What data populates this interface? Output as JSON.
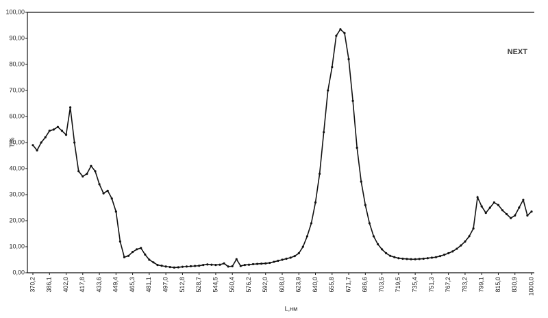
{
  "chart_data": {
    "type": "line",
    "x_label": "L,нм",
    "y_label": "T,%",
    "annotation": "NEXT",
    "color": "#111111",
    "grid": false,
    "categories": [
      "370,2",
      null,
      null,
      null,
      "386,1",
      null,
      null,
      null,
      "402,0",
      null,
      null,
      null,
      "417,8",
      null,
      null,
      null,
      "433,6",
      null,
      null,
      null,
      "449,4",
      null,
      null,
      null,
      "465,3",
      null,
      null,
      null,
      "481,1",
      null,
      null,
      null,
      "497,0",
      null,
      null,
      null,
      "512,8",
      null,
      null,
      null,
      "528,7",
      null,
      null,
      null,
      "544,5",
      null,
      null,
      null,
      "560,4",
      null,
      null,
      null,
      "576,2",
      null,
      null,
      null,
      "592,0",
      null,
      null,
      null,
      "608,0",
      null,
      null,
      null,
      "623,9",
      null,
      null,
      null,
      "640,0",
      null,
      null,
      null,
      "655,8",
      null,
      null,
      null,
      "671,7",
      null,
      null,
      null,
      "686,6",
      null,
      null,
      null,
      "703,5",
      null,
      null,
      null,
      "719,5",
      null,
      null,
      null,
      "735,4",
      null,
      null,
      null,
      "751,3",
      null,
      null,
      null,
      "767,2",
      null,
      null,
      null,
      "783,2",
      null,
      null,
      null,
      "799,1",
      null,
      null,
      null,
      "815,0",
      null,
      null,
      null,
      "830,9",
      null,
      null,
      null,
      "1000,0"
    ],
    "values": [
      49,
      47,
      50,
      52,
      54.5,
      55,
      56,
      54.5,
      53,
      63.5,
      50,
      39,
      37,
      38,
      41,
      39,
      34,
      30.5,
      31.5,
      28.5,
      23.5,
      12,
      6,
      6.5,
      8,
      9,
      9.5,
      7,
      5,
      4,
      3,
      2.7,
      2.4,
      2.2,
      2.0,
      2.1,
      2.3,
      2.4,
      2.5,
      2.6,
      2.7,
      3.0,
      3.2,
      3.1,
      3.0,
      3.1,
      3.6,
      2.4,
      2.5,
      5.2,
      2.6,
      3.0,
      3.1,
      3.3,
      3.4,
      3.5,
      3.6,
      3.8,
      4.2,
      4.6,
      5.0,
      5.4,
      5.8,
      6.4,
      7.5,
      10,
      14,
      19,
      27,
      38,
      54,
      70,
      79,
      91,
      93.5,
      92,
      82,
      66,
      48,
      35,
      26,
      19,
      14,
      11,
      9,
      7.5,
      6.5,
      6,
      5.6,
      5.4,
      5.3,
      5.2,
      5.2,
      5.3,
      5.4,
      5.6,
      5.8,
      6.0,
      6.4,
      6.9,
      7.5,
      8.2,
      9.2,
      10.5,
      12,
      14,
      17,
      29,
      25.5,
      23,
      25,
      27,
      26,
      24,
      22.5,
      21,
      22,
      25,
      28,
      22,
      23.5
    ],
    "ylim": [
      0,
      100
    ],
    "yticks": [
      {
        "value": 0,
        "label": "0,00"
      },
      {
        "value": 10,
        "label": "10,00"
      },
      {
        "value": 20,
        "label": "20,00"
      },
      {
        "value": 30,
        "label": "30,00"
      },
      {
        "value": 40,
        "label": "40,00"
      },
      {
        "value": 50,
        "label": "50,00"
      },
      {
        "value": 60,
        "label": "60,00"
      },
      {
        "value": 70,
        "label": "70,00"
      },
      {
        "value": 80,
        "label": "80,00"
      },
      {
        "value": 90,
        "label": "90,00"
      },
      {
        "value": 100,
        "label": "100,00"
      }
    ]
  }
}
